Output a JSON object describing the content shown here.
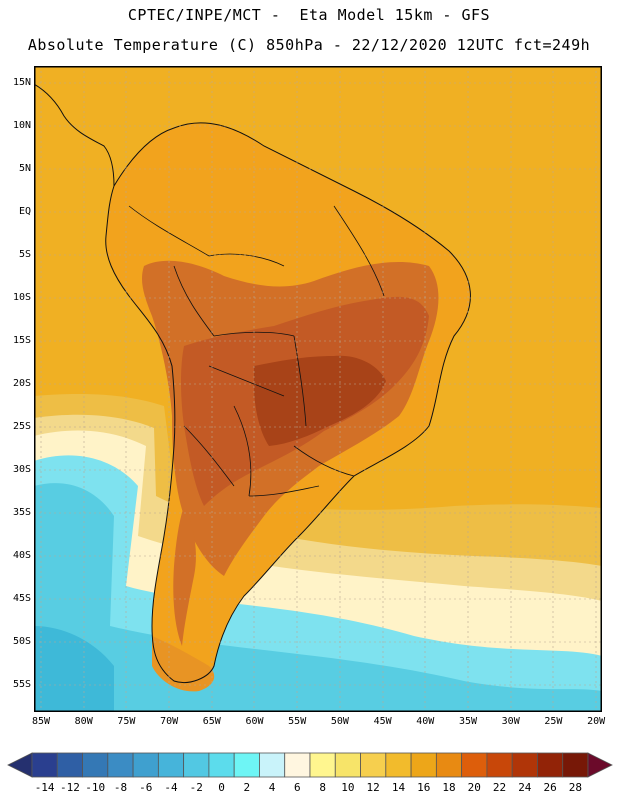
{
  "header": {
    "title_line1": "CPTEC/INPE/MCT -  Eta Model 15km - GFS",
    "title_line2": "Absolute Temperature (C) 850hPa - 22/12/2020 12UTC fct=249h"
  },
  "map": {
    "region": "South America",
    "field": "Absolute Temperature (C) at 850hPa",
    "latitude_labels": [
      "15N",
      "10N",
      "5N",
      "EQ",
      "5S",
      "10S",
      "15S",
      "20S",
      "25S",
      "30S",
      "35S",
      "40S",
      "45S",
      "50S",
      "55S"
    ],
    "longitude_labels": [
      "85W",
      "80W",
      "75W",
      "70W",
      "65W",
      "60W",
      "55W",
      "50W",
      "45W",
      "40W",
      "35W",
      "30W",
      "25W",
      "20W"
    ]
  },
  "colorbar": {
    "labels": [
      "-14",
      "-12",
      "-10",
      "-8",
      "-6",
      "-4",
      "-2",
      "0",
      "2",
      "4",
      "6",
      "8",
      "10",
      "12",
      "14",
      "16",
      "18",
      "20",
      "22",
      "24",
      "26",
      "28"
    ],
    "colors": [
      "#2a3f8f",
      "#2f5fa5",
      "#3478b5",
      "#3b8cc4",
      "#3fa0cf",
      "#46b4da",
      "#52c8e3",
      "#5cdcec",
      "#6ef5f5",
      "#c9f3fa",
      "#fff6e0",
      "#fff68f",
      "#f7e469",
      "#f6cf4e",
      "#f2bb2c",
      "#eda619",
      "#e88a12",
      "#dd5e0b",
      "#c84709",
      "#b03508",
      "#922307",
      "#771807"
    ],
    "units": "C"
  },
  "style": {
    "ocean_colors": [
      "#f0b023",
      "#eebe45",
      "#f3d98b",
      "#fff3c8",
      "#cfeff8",
      "#7ee2ef",
      "#58cde2",
      "#3eb9d8"
    ],
    "land_colors": [
      "#f2a31d",
      "#e89424",
      "#d27027",
      "#c35a25",
      "#a84318"
    ],
    "border_color": "#111111",
    "grid_color": "#b9a894"
  }
}
